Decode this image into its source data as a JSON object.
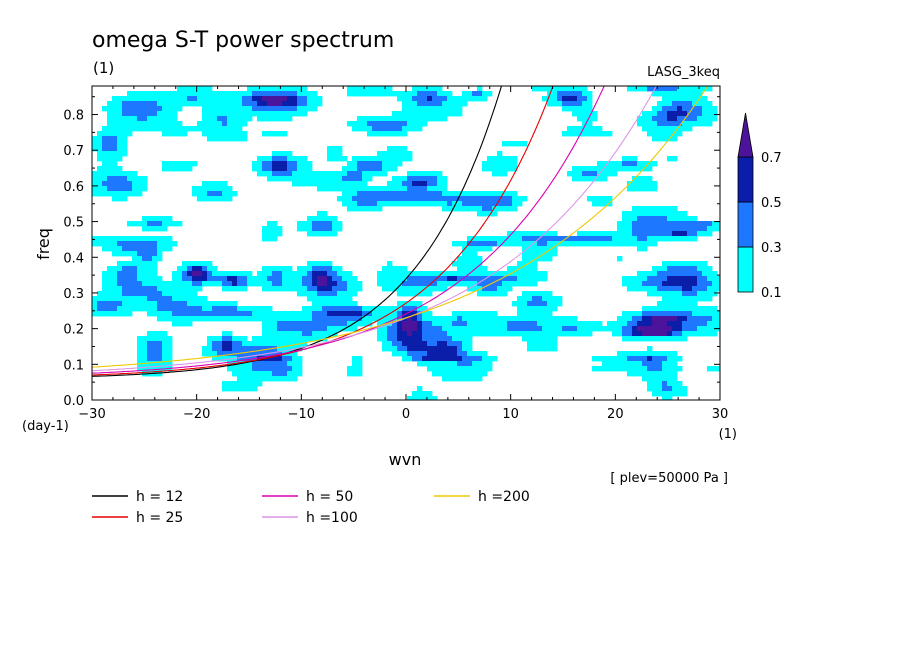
{
  "chart_data": {
    "type": "contour",
    "title": "omega S-T power spectrum",
    "subtitle": "(1)",
    "source_label": "LASG_3keq",
    "xlabel": "wvn",
    "ylabel": "freq",
    "x_unit": "(1)",
    "y_unit": "(day-1)",
    "xlim": [
      -30,
      30
    ],
    "ylim": [
      0,
      0.88
    ],
    "x_ticks": [
      -30,
      -20,
      -10,
      0,
      10,
      20,
      30
    ],
    "y_ticks": [
      0.0,
      0.1,
      0.2,
      0.3,
      0.4,
      0.5,
      0.6,
      0.7,
      0.8
    ],
    "plev_label": "[ plev=50000 Pa ]",
    "contour_levels": [
      0.1,
      0.3,
      0.5,
      0.7
    ],
    "contour_colors": [
      "#00ffff",
      "#1e78ff",
      "#0a1eaa",
      "#4b149b"
    ],
    "series": [
      {
        "name": "h = 12",
        "color": "#000000",
        "equivalent_depth": 12
      },
      {
        "name": "h = 25",
        "color": "#e60000",
        "equivalent_depth": 25
      },
      {
        "name": "h = 50",
        "color": "#dc00b4",
        "equivalent_depth": 50
      },
      {
        "name": "h =100",
        "color": "#dc96e6",
        "equivalent_depth": 100
      },
      {
        "name": "h =200",
        "color": "#f0c800",
        "equivalent_depth": 200
      }
    ]
  }
}
